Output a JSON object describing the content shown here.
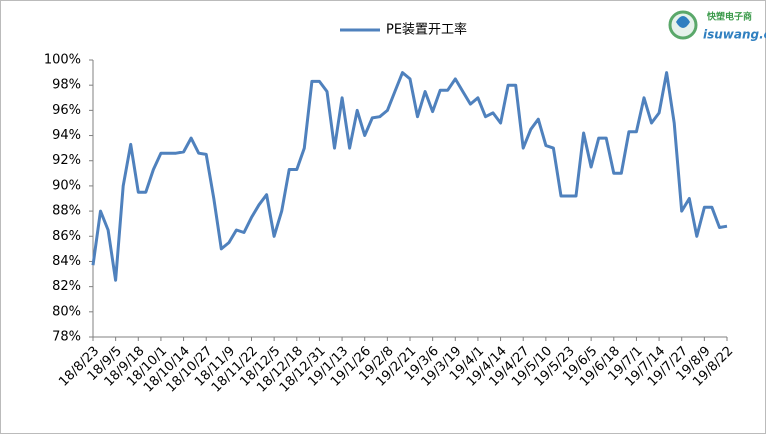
{
  "chart_data": {
    "type": "line",
    "watermark": {
      "line1": "快塑电子商",
      "line2": "isuwang.co"
    },
    "categories": [
      "18/8/23",
      null,
      null,
      "18/9/5",
      null,
      null,
      "18/9/18",
      null,
      null,
      "18/10/1",
      null,
      null,
      "18/10/14",
      null,
      null,
      "18/10/27",
      null,
      null,
      "18/11/9",
      null,
      null,
      "18/11/22",
      null,
      null,
      "18/12/5",
      null,
      null,
      "18/12/18",
      null,
      null,
      "18/12/31",
      null,
      null,
      "19/1/13",
      null,
      null,
      "19/1/26",
      null,
      null,
      "19/2/8",
      null,
      null,
      "19/2/21",
      null,
      null,
      "19/3/6",
      null,
      null,
      "19/3/19",
      null,
      null,
      "19/4/1",
      null,
      null,
      "19/4/14",
      null,
      null,
      "19/4/27",
      null,
      null,
      "19/5/10",
      null,
      null,
      "19/5/23",
      null,
      null,
      "19/6/5",
      null,
      null,
      "19/6/18",
      null,
      null,
      "19/7/1",
      null,
      null,
      "19/7/14",
      null,
      null,
      "19/7/27",
      null,
      null,
      "19/8/9",
      null,
      null,
      "19/8/22"
    ],
    "series": [
      {
        "name": "PE装置开工率",
        "color": "#4f81bd",
        "values": [
          83.7,
          88,
          86.5,
          82.5,
          90,
          93.3,
          89.5,
          89.5,
          91.3,
          92.6,
          92.6,
          92.6,
          92.7,
          93.8,
          92.6,
          92.5,
          89,
          85,
          85.5,
          86.5,
          86.3,
          87.5,
          88.5,
          89.3,
          86,
          88,
          91.3,
          91.3,
          93,
          98.3,
          98.3,
          97.5,
          93,
          97,
          93,
          96,
          94,
          95.4,
          95.5,
          96,
          97.5,
          99,
          98.5,
          95.5,
          97.5,
          95.9,
          97.6,
          97.6,
          98.5,
          97.5,
          96.5,
          97,
          95.5,
          95.8,
          95,
          98,
          98,
          93,
          94.5,
          95.3,
          93.2,
          93,
          89.2,
          89.2,
          89.2,
          94.2,
          91.5,
          93.8,
          93.8,
          91,
          91,
          94.3,
          94.3,
          97,
          95,
          95.8,
          99,
          95,
          88,
          89,
          86,
          88.3,
          88.3,
          86.7,
          86.8
        ]
      }
    ],
    "ylim": [
      78,
      100
    ],
    "yticks": [
      {
        "value": 78,
        "label": "78%"
      },
      {
        "value": 80,
        "label": "80%"
      },
      {
        "value": 82,
        "label": "82%"
      },
      {
        "value": 84,
        "label": "84%"
      },
      {
        "value": 86,
        "label": "86%"
      },
      {
        "value": 88,
        "label": "88%"
      },
      {
        "value": 90,
        "label": "90%"
      },
      {
        "value": 92,
        "label": "92%"
      },
      {
        "value": 94,
        "label": "94%"
      },
      {
        "value": 96,
        "label": "96%"
      },
      {
        "value": 98,
        "label": "98%"
      },
      {
        "value": 100,
        "label": "100%"
      }
    ],
    "legend": "top",
    "grid": false
  }
}
